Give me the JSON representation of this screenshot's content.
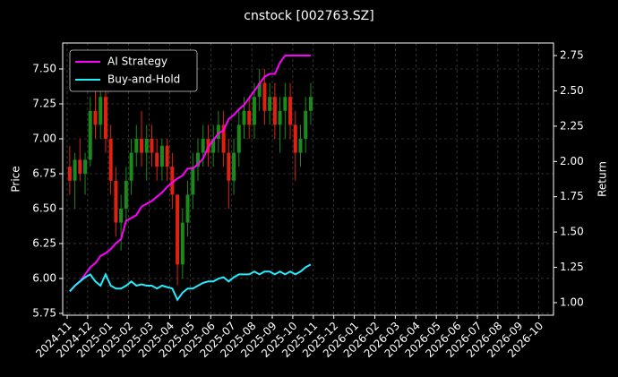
{
  "chart_data": {
    "type": "candlestick",
    "title": "cnstock [002763.SZ]",
    "y_label": "Price",
    "y2_label": "Return",
    "x": [
      "2024-11",
      "2024-11",
      "2024-11",
      "2024-11",
      "2024-12",
      "2024-12",
      "2024-12",
      "2024-12",
      "2025-01",
      "2025-01",
      "2025-01",
      "2025-01",
      "2025-02",
      "2025-02",
      "2025-02",
      "2025-02",
      "2025-03",
      "2025-03",
      "2025-03",
      "2025-03",
      "2025-04",
      "2025-04",
      "2025-04",
      "2025-04",
      "2025-05",
      "2025-05",
      "2025-05",
      "2025-05",
      "2025-06",
      "2025-06",
      "2025-06",
      "2025-06",
      "2025-07",
      "2025-07",
      "2025-07",
      "2025-07",
      "2025-08",
      "2025-08",
      "2025-08",
      "2025-08",
      "2025-09",
      "2025-09",
      "2025-09",
      "2025-09",
      "2025-10",
      "2025-10",
      "2025-10",
      "2025-10"
    ],
    "open": [
      6.8,
      6.7,
      6.85,
      6.75,
      6.85,
      7.2,
      7.1,
      7.3,
      7.0,
      6.7,
      6.4,
      6.5,
      6.7,
      6.9,
      7.0,
      6.9,
      7.0,
      6.9,
      6.8,
      6.95,
      6.8,
      6.6,
      6.1,
      6.4,
      6.6,
      6.8,
      6.9,
      7.0,
      6.9,
      7.0,
      7.1,
      6.9,
      6.7,
      6.9,
      7.1,
      7.2,
      7.1,
      7.3,
      7.4,
      7.2,
      7.3,
      7.1,
      7.2,
      7.3,
      7.1,
      6.9,
      7.0,
      7.2
    ],
    "high": [
      6.95,
      6.9,
      7.0,
      6.9,
      7.3,
      7.4,
      7.5,
      7.4,
      7.1,
      6.8,
      6.6,
      6.8,
      7.0,
      7.1,
      7.2,
      7.1,
      7.1,
      7.0,
      7.0,
      7.0,
      6.9,
      6.6,
      6.5,
      6.7,
      6.9,
      7.0,
      7.1,
      7.1,
      7.1,
      7.2,
      7.2,
      7.0,
      7.0,
      7.2,
      7.3,
      7.3,
      7.4,
      7.5,
      7.5,
      7.4,
      7.4,
      7.3,
      7.4,
      7.4,
      7.2,
      7.1,
      7.3,
      7.4
    ],
    "low": [
      6.6,
      6.5,
      6.7,
      6.6,
      6.8,
      7.0,
      7.0,
      6.9,
      6.6,
      6.3,
      6.2,
      6.4,
      6.6,
      6.8,
      6.8,
      6.7,
      6.8,
      6.7,
      6.7,
      6.7,
      6.5,
      5.95,
      6.0,
      6.3,
      6.5,
      6.7,
      6.8,
      6.8,
      6.8,
      6.9,
      6.8,
      6.5,
      6.6,
      6.8,
      7.0,
      7.0,
      7.0,
      7.2,
      7.1,
      7.1,
      7.0,
      6.9,
      7.0,
      7.0,
      6.7,
      6.8,
      6.9,
      7.1
    ],
    "close": [
      6.7,
      6.85,
      6.75,
      6.85,
      7.2,
      7.1,
      7.3,
      7.0,
      6.7,
      6.4,
      6.5,
      6.7,
      6.9,
      7.0,
      6.9,
      7.0,
      6.9,
      6.8,
      6.95,
      6.8,
      6.6,
      6.1,
      6.4,
      6.6,
      6.8,
      6.9,
      7.0,
      6.9,
      7.0,
      7.1,
      6.9,
      6.7,
      6.9,
      7.1,
      7.2,
      7.1,
      7.3,
      7.4,
      7.2,
      7.3,
      7.1,
      7.2,
      7.3,
      7.1,
      6.9,
      7.0,
      7.2,
      7.3
    ],
    "up_color": "#1a8a1a",
    "down_color": "#e02010",
    "series": [
      {
        "name": "AI Strategy",
        "color": "#ff00ff",
        "axis": "y2",
        "values": [
          1.08,
          1.12,
          1.15,
          1.2,
          1.25,
          1.28,
          1.33,
          1.35,
          1.38,
          1.42,
          1.45,
          1.58,
          1.6,
          1.62,
          1.68,
          1.7,
          1.72,
          1.75,
          1.78,
          1.82,
          1.85,
          1.88,
          1.9,
          1.95,
          1.95,
          1.98,
          2.02,
          2.1,
          2.15,
          2.2,
          2.22,
          2.3,
          2.33,
          2.37,
          2.4,
          2.45,
          2.5,
          2.55,
          2.6,
          2.62,
          2.62,
          2.7,
          2.75,
          2.75,
          2.75,
          2.75,
          2.75,
          2.75
        ]
      },
      {
        "name": "Buy-and-Hold",
        "color": "#22eeff",
        "axis": "y2",
        "values": [
          1.08,
          1.12,
          1.15,
          1.18,
          1.2,
          1.15,
          1.12,
          1.2,
          1.12,
          1.1,
          1.1,
          1.12,
          1.15,
          1.12,
          1.13,
          1.12,
          1.12,
          1.1,
          1.12,
          1.11,
          1.1,
          1.02,
          1.07,
          1.1,
          1.1,
          1.12,
          1.14,
          1.15,
          1.15,
          1.17,
          1.18,
          1.15,
          1.18,
          1.2,
          1.2,
          1.2,
          1.22,
          1.2,
          1.22,
          1.22,
          1.2,
          1.22,
          1.2,
          1.22,
          1.2,
          1.22,
          1.25,
          1.27
        ]
      }
    ],
    "xticks": [
      "2024-11",
      "2024-12",
      "2025-01",
      "2025-02",
      "2025-03",
      "2025-04",
      "2025-05",
      "2025-06",
      "2025-07",
      "2025-08",
      "2025-09",
      "2025-10",
      "2025-11",
      "2025-12",
      "2026-01",
      "2026-02",
      "2026-03",
      "2026-04",
      "2026-05",
      "2026-06",
      "2026-07",
      "2026-08",
      "2026-09",
      "2026-10"
    ],
    "ylim": [
      5.737,
      7.686
    ],
    "yticks": [
      5.75,
      {
        "value": 6,
        "label": "6.00"
      },
      6.25,
      {
        "value": 6.5,
        "label": "6.50"
      },
      6.75,
      {
        "value": 7,
        "label": "7.00"
      },
      7.25,
      {
        "value": 7.5,
        "label": "7.50"
      }
    ],
    "y2lim": [
      0.911,
      2.839
    ],
    "y2ticks": [
      {
        "value": 1,
        "label": "1.00"
      },
      1.25,
      {
        "value": 1.5,
        "label": "1.50"
      },
      1.75,
      {
        "value": 2,
        "label": "2.00"
      },
      2.25,
      {
        "value": 2.5,
        "label": "2.50"
      },
      2.75
    ],
    "grid": true,
    "legend": "upper left"
  }
}
